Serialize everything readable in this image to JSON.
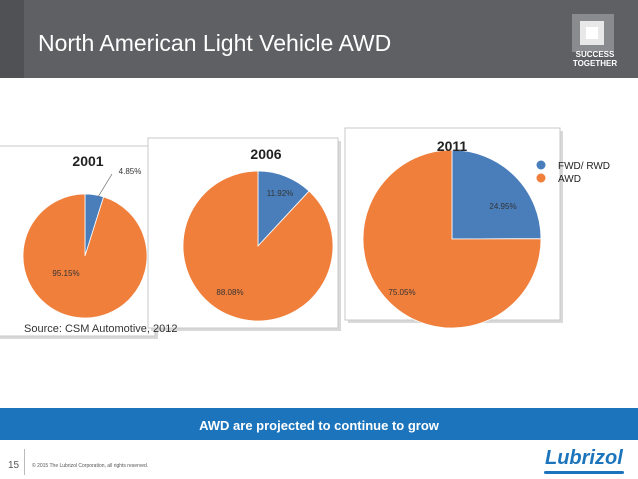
{
  "header": {
    "title": "North American Light Vehicle AWD",
    "brand_tagline_line1": "SUCCESS",
    "brand_tagline_line2": "TOGETHER"
  },
  "chart_data": {
    "type": "pie",
    "legend_position": "right",
    "series_names": [
      "FWD/ RWD",
      "AWD"
    ],
    "colors": {
      "FWD/ RWD": "#4a7ebb",
      "AWD": "#f07f3c"
    },
    "pies": [
      {
        "title": "2001",
        "values": [
          4.85,
          95.15
        ],
        "labels": [
          "4.85%",
          "95.15%"
        ]
      },
      {
        "title": "2006",
        "values": [
          11.92,
          88.08
        ],
        "labels": [
          "11.92%",
          "88.08%"
        ]
      },
      {
        "title": "2011",
        "values": [
          24.95,
          75.05
        ],
        "labels": [
          "24.95%",
          "75.05%"
        ]
      }
    ]
  },
  "source": "Source: CSM Automotive, 2012",
  "banner": "AWD are projected to continue to grow",
  "footer": {
    "page_number": "15",
    "copyright": "© 2015 The Lubrizol Corporation, all rights reserved.",
    "brand": "Lubrizol"
  }
}
